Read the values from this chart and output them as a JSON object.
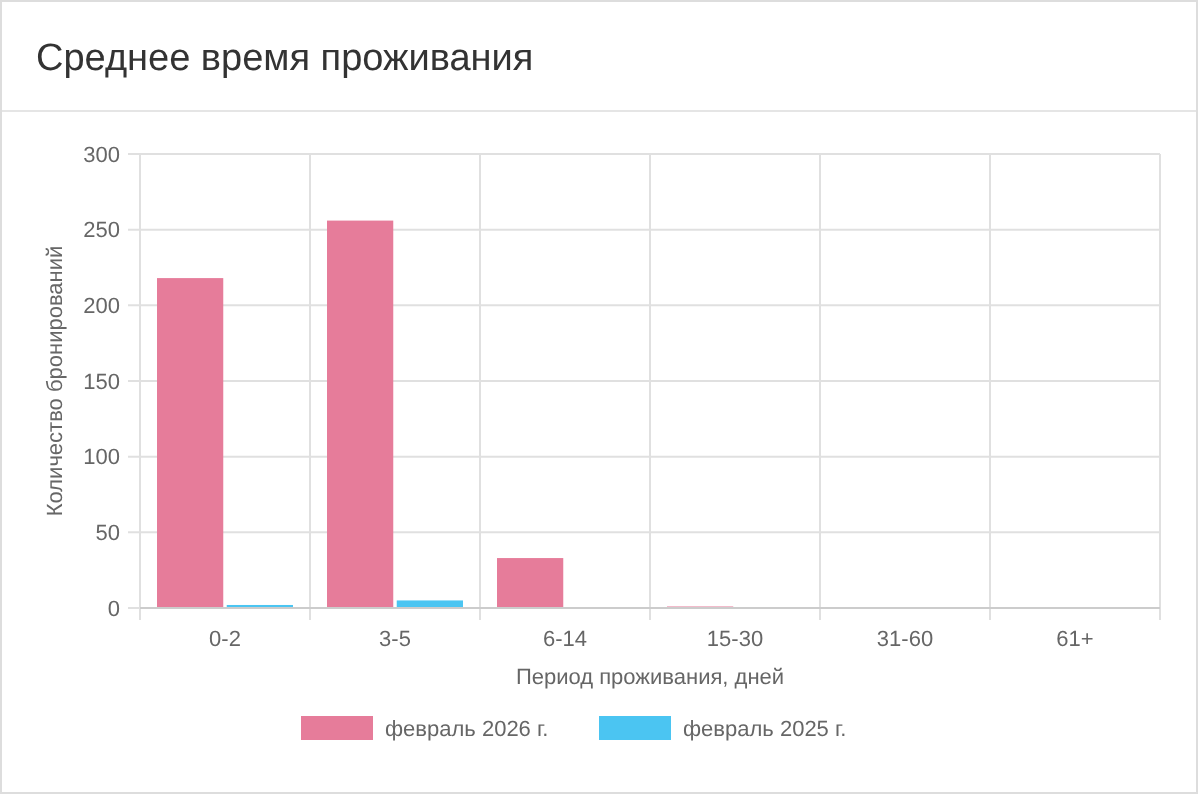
{
  "chart_data": {
    "type": "bar",
    "title": "Среднее время проживания",
    "xlabel": "Период проживания, дней",
    "ylabel": "Количество бронирований",
    "categories": [
      "0-2",
      "3-5",
      "6-14",
      "15-30",
      "31-60",
      "61+"
    ],
    "series": [
      {
        "name": "февраль 2026 г.",
        "color": "#e67c9a",
        "values": [
          218,
          256,
          33,
          1,
          0,
          0
        ]
      },
      {
        "name": "февраль 2025 г.",
        "color": "#4bc5f2",
        "values": [
          2,
          5,
          0,
          0,
          0,
          0
        ]
      }
    ],
    "ylim": [
      0,
      300
    ],
    "yticks": [
      0,
      50,
      100,
      150,
      200,
      250,
      300
    ],
    "grid": true,
    "legend": "bottom"
  }
}
